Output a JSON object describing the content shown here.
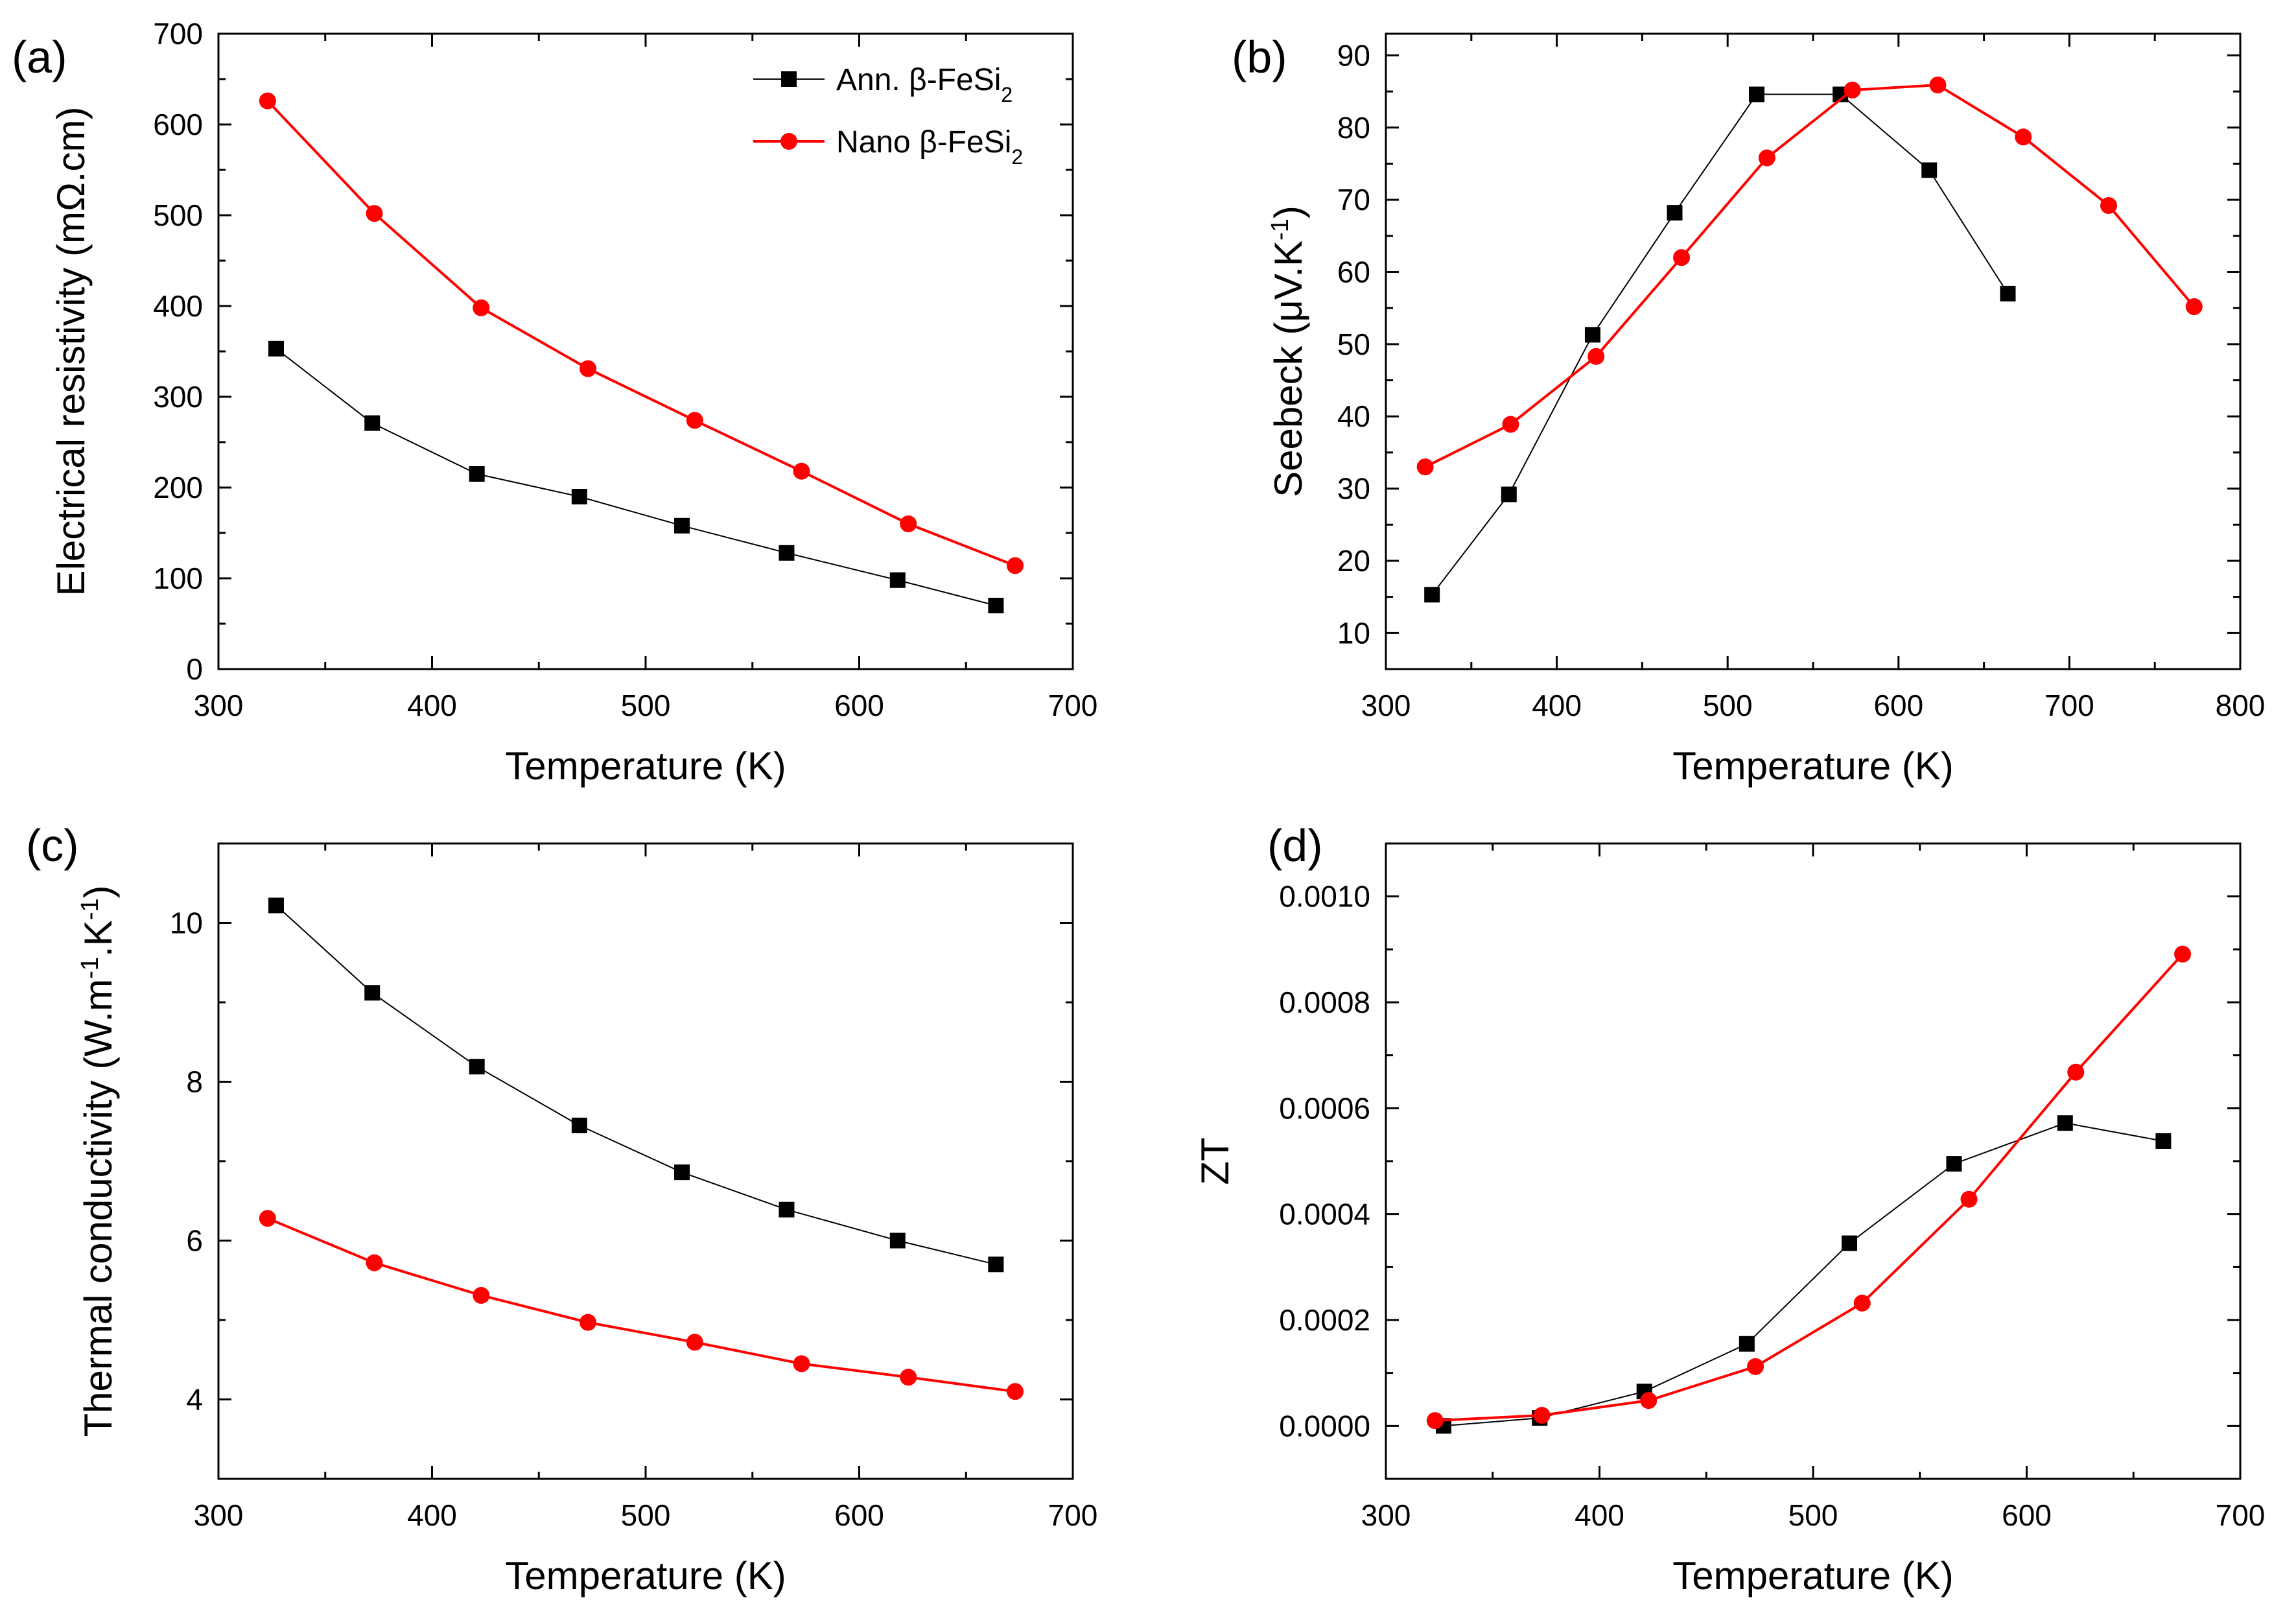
{
  "chart_data": [
    {
      "panel_label": "(a)",
      "type": "line",
      "xlabel": "Temperature (K)",
      "ylabel": "Electrical resistivity (mΩ.cm)",
      "xlim": [
        300,
        700
      ],
      "ylim": [
        0,
        700
      ],
      "xticks": [
        300,
        400,
        500,
        600,
        700
      ],
      "yticks": [
        0,
        100,
        200,
        300,
        400,
        500,
        600,
        700
      ],
      "legend_position": "top-right",
      "series": [
        {
          "name": "Ann. β-FeSi₂",
          "legend_base": "Ann. β-FeSi",
          "legend_sub": "2",
          "color": "#000000",
          "marker": "square",
          "x": [
            327,
            372,
            421,
            469,
            517,
            566,
            618,
            664
          ],
          "y": [
            353,
            271,
            215,
            190,
            158,
            128,
            98,
            70
          ]
        },
        {
          "name": "Nano β-FeSi₂",
          "legend_base": "Nano β-FeSi",
          "legend_sub": "2",
          "color": "#ff0000",
          "marker": "circle",
          "x": [
            323,
            373,
            423,
            473,
            523,
            573,
            623,
            673
          ],
          "y": [
            626,
            502,
            398,
            331,
            274,
            218,
            160,
            114
          ]
        }
      ]
    },
    {
      "panel_label": "(b)",
      "type": "line",
      "xlabel": "Temperature (K)",
      "ylabel": "Seebeck (μV.K⁻¹)",
      "ylabel_base": "Seebeck (μV.K",
      "ylabel_sup": "-1",
      "ylabel_tail": ")",
      "xlim": [
        300,
        800
      ],
      "ylim": [
        5,
        93
      ],
      "xticks": [
        300,
        400,
        500,
        600,
        700,
        800
      ],
      "yticks": [
        10,
        20,
        30,
        40,
        50,
        60,
        70,
        80,
        90
      ],
      "series": [
        {
          "name": "Ann. β-FeSi₂",
          "color": "#000000",
          "marker": "square",
          "x": [
            327,
            372,
            421,
            469,
            517,
            566,
            618,
            664
          ],
          "y": [
            15.3,
            29.2,
            51.3,
            68.2,
            84.6,
            84.6,
            74.1,
            57.0
          ]
        },
        {
          "name": "Nano β-FeSi₂",
          "color": "#ff0000",
          "marker": "circle",
          "x": [
            323,
            373,
            423,
            473,
            523,
            573,
            623,
            673,
            723,
            773
          ],
          "y": [
            33.0,
            38.9,
            48.3,
            62.0,
            75.8,
            85.2,
            85.9,
            78.7,
            69.2,
            55.2
          ]
        }
      ]
    },
    {
      "panel_label": "(c)",
      "type": "line",
      "xlabel": "Temperature (K)",
      "ylabel": "Thermal conductivity (W.m⁻¹.K⁻¹)",
      "ylabel_parts": [
        "Thermal conductivity (W.m",
        "-1",
        ".K",
        "-1",
        ")"
      ],
      "xlim": [
        300,
        700
      ],
      "ylim": [
        3,
        11
      ],
      "xticks": [
        300,
        400,
        500,
        600,
        700
      ],
      "yticks": [
        4,
        6,
        8,
        10
      ],
      "series": [
        {
          "name": "Ann. β-FeSi₂",
          "color": "#000000",
          "marker": "square",
          "x": [
            327,
            372,
            421,
            469,
            517,
            566,
            618,
            664
          ],
          "y": [
            10.22,
            9.12,
            8.19,
            7.45,
            6.86,
            6.39,
            6.0,
            5.7
          ]
        },
        {
          "name": "Nano β-FeSi₂",
          "color": "#ff0000",
          "marker": "circle",
          "x": [
            323,
            373,
            423,
            473,
            523,
            573,
            623,
            673
          ],
          "y": [
            6.28,
            5.72,
            5.31,
            4.97,
            4.72,
            4.45,
            4.28,
            4.1
          ]
        }
      ]
    },
    {
      "panel_label": "(d)",
      "type": "line",
      "xlabel": "Temperature (K)",
      "ylabel": "ZT",
      "xlim": [
        300,
        700
      ],
      "ylim": [
        -0.0001,
        0.0011
      ],
      "xticks": [
        300,
        400,
        500,
        600,
        700
      ],
      "yticks": [
        0.0,
        0.0002,
        0.0004,
        0.0006,
        0.0008,
        0.001
      ],
      "ytick_labels": [
        "0.0000",
        "0.0002",
        "0.0004",
        "0.0006",
        "0.0008",
        "0.0010"
      ],
      "series": [
        {
          "name": "Ann. β-FeSi₂",
          "color": "#000000",
          "marker": "square",
          "x": [
            327,
            372,
            421,
            469,
            517,
            566,
            618,
            664
          ],
          "y": [
            0.0,
            1.5e-05,
            6.5e-05,
            0.000155,
            0.000345,
            0.000495,
            0.000572,
            0.000538
          ]
        },
        {
          "name": "Nano β-FeSi₂",
          "color": "#ff0000",
          "marker": "circle",
          "x": [
            323,
            373,
            423,
            473,
            523,
            573,
            623,
            673
          ],
          "y": [
            1e-05,
            2e-05,
            4.8e-05,
            0.000112,
            0.000232,
            0.000428,
            0.000668,
            0.000891
          ]
        }
      ]
    }
  ]
}
